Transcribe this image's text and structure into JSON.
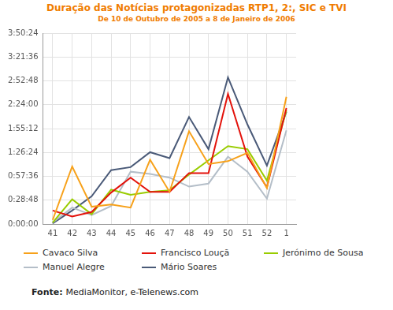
{
  "chart_data": {
    "type": "line",
    "title": "Duração das Notícias protagonizadas RTP1, 2:, SIC e TVI",
    "subtitle": "De 10 de Outubro de 2005 a 8 de Janeiro de 2006",
    "source_label": "Fonte:",
    "source": "MediaMonitor, e-Telenews.com",
    "categories": [
      "41",
      "42",
      "43",
      "44",
      "45",
      "46",
      "47",
      "48",
      "49",
      "50",
      "51",
      "52",
      "1"
    ],
    "series": [
      {
        "name": "Cavaco Silva",
        "color": "#f7a11a",
        "values": [
          300,
          4170,
          1250,
          1410,
          1190,
          4660,
          2330,
          6720,
          4340,
          4550,
          5150,
          2600,
          9210
        ]
      },
      {
        "name": "Francisco Louçã",
        "color": "#e3120b",
        "values": [
          980,
          540,
          870,
          2280,
          3360,
          2330,
          2330,
          3690,
          3690,
          9430,
          4880,
          2660,
          8400
        ]
      },
      {
        "name": "Jerónimo de Sousa",
        "color": "#99cc00",
        "values": [
          110,
          1790,
          710,
          2490,
          2110,
          2330,
          2440,
          3580,
          4610,
          5640,
          5420,
          3140,
          8240
        ]
      },
      {
        "name": "Manuel Alegre",
        "color": "#b4bec8",
        "values": [
          110,
          1190,
          650,
          1300,
          3790,
          3630,
          3360,
          2710,
          2930,
          4880,
          3790,
          1840,
          6780
        ]
      },
      {
        "name": "Mário Soares",
        "color": "#4a5a78",
        "values": [
          50,
          980,
          2010,
          3900,
          4120,
          5200,
          4770,
          7750,
          5420,
          10620,
          7210,
          4230,
          8130
        ]
      }
    ],
    "ylim": [
      0,
      13824
    ],
    "yticks": [
      {
        "value": 0,
        "label": "0:00:00"
      },
      {
        "value": 1728,
        "label": "0:28:48"
      },
      {
        "value": 3456,
        "label": "0:57:36"
      },
      {
        "value": 5184,
        "label": "1:26:24"
      },
      {
        "value": 6912,
        "label": "1:55:12"
      },
      {
        "value": 8640,
        "label": "2:24:00"
      },
      {
        "value": 10368,
        "label": "2:52:48"
      },
      {
        "value": 12096,
        "label": "3:21:36"
      },
      {
        "value": 13824,
        "label": "3:50:24"
      }
    ],
    "grid": true,
    "legend": "bottom"
  }
}
